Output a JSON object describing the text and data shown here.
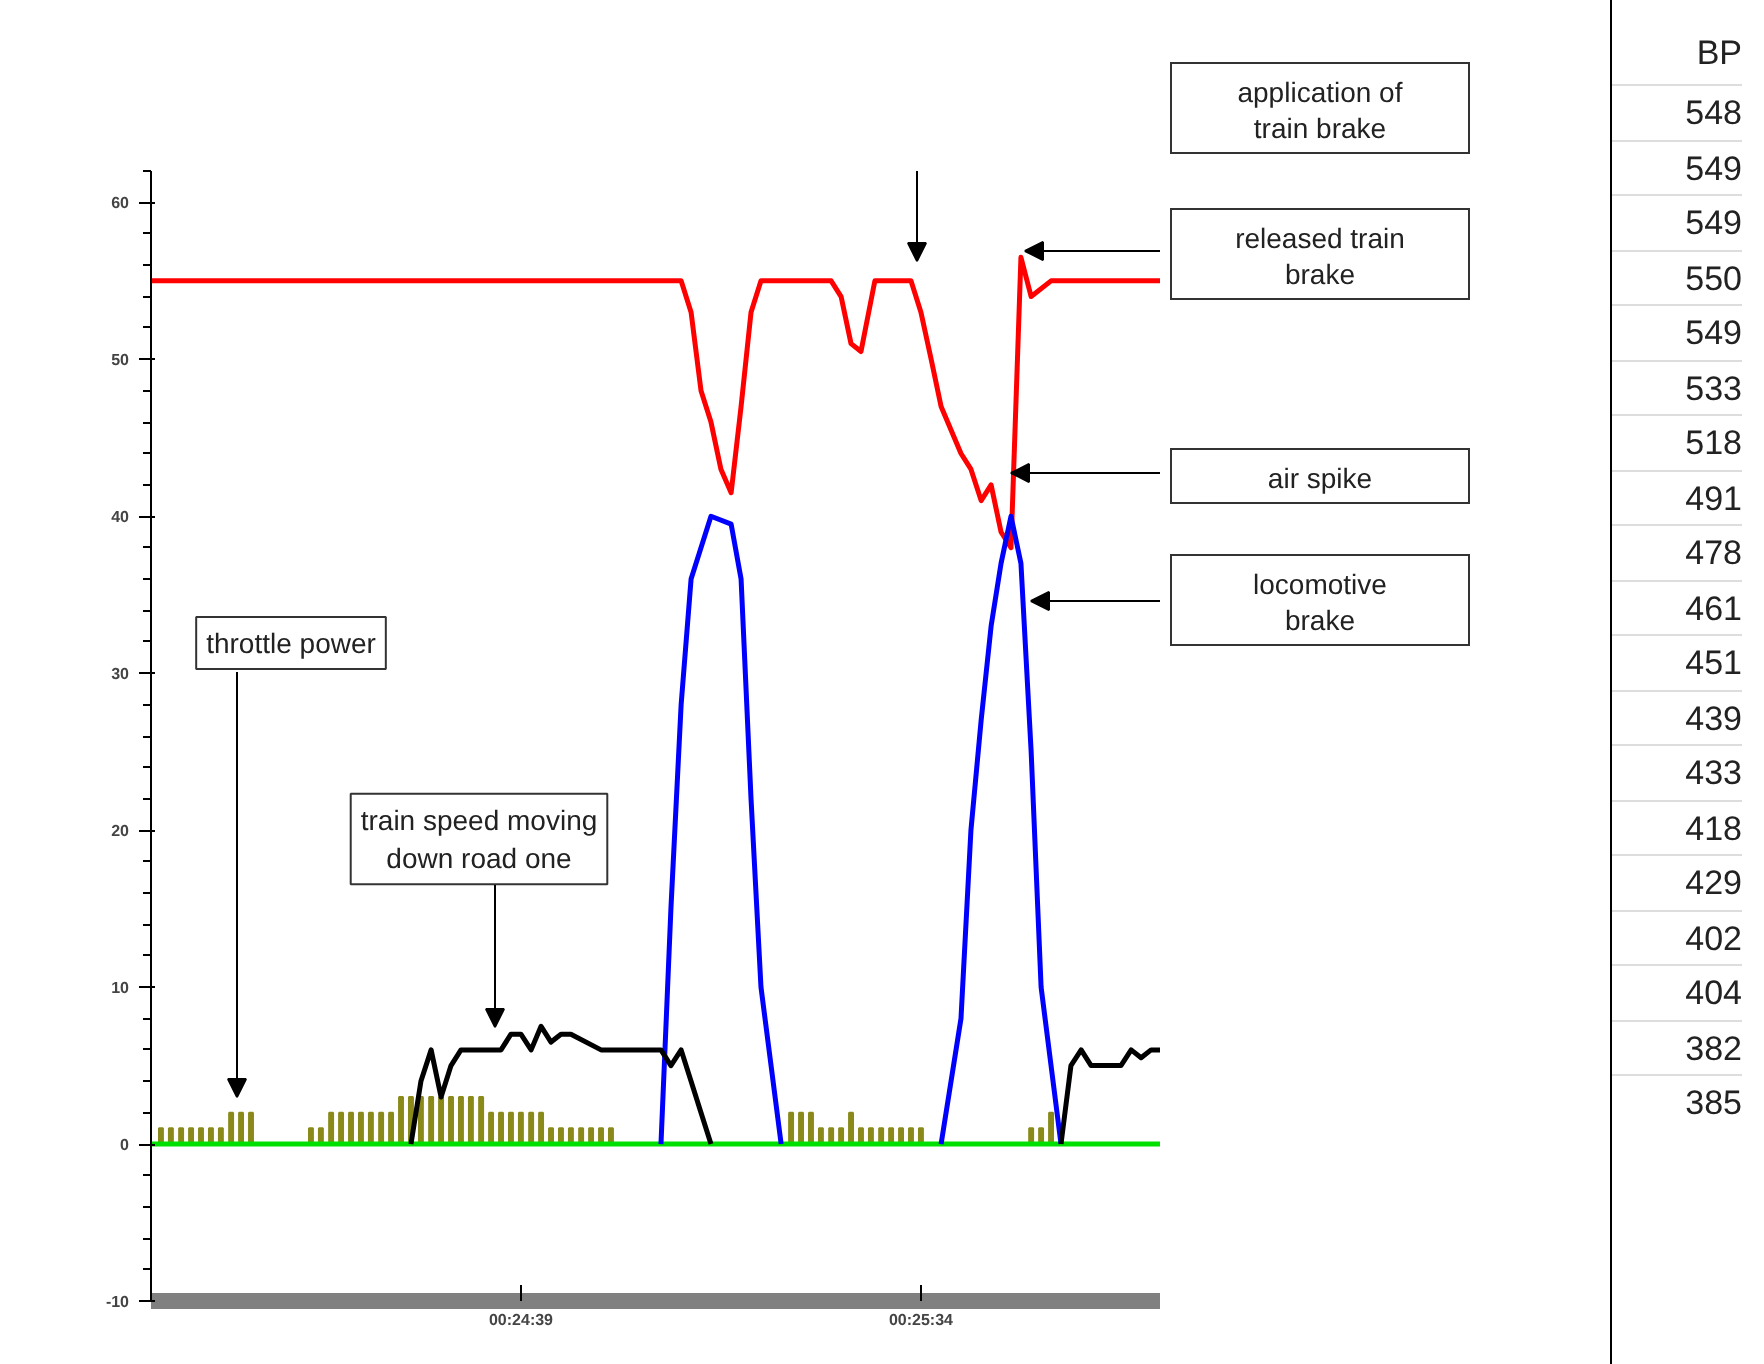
{
  "chart_data": [
    {
      "type": "line",
      "xlim": [
        0.3967,
        0.43528
      ],
      "ylim": [
        -10,
        62
      ],
      "xticks": [
        {
          "value": 0.410833,
          "label": "00:24:39"
        },
        {
          "value": 0.426111,
          "label": "00:25:34"
        }
      ],
      "yticks": [
        -10,
        0,
        10,
        20,
        30,
        40,
        50,
        60
      ],
      "grid": false,
      "series": [
        {
          "type": "bar",
          "color": "#8a8a1a",
          "x": [
            0.39708,
            0.39746,
            0.39785,
            0.39823,
            0.39861,
            0.39899,
            0.39937,
            0.39976,
            0.40014,
            0.40052,
            0.40281,
            0.40319,
            0.40358,
            0.40396,
            0.40434,
            0.40472,
            0.4051,
            0.40549,
            0.40587,
            0.40625,
            0.40663,
            0.40701,
            0.4074,
            0.40778,
            0.40816,
            0.40854,
            0.40892,
            0.40931,
            0.40969,
            0.41007,
            0.41045,
            0.41083,
            0.41122,
            0.4116,
            0.41198,
            0.41236,
            0.41274,
            0.41313,
            0.41351,
            0.41389,
            0.41427,
            0.42115,
            0.42153,
            0.42191,
            0.42229,
            0.42268,
            0.42306,
            0.42344,
            0.42382,
            0.4242,
            0.42459,
            0.42497,
            0.42535,
            0.42573,
            0.42611,
            0.43032,
            0.4307,
            0.43108
          ],
          "values": [
            1,
            1,
            1,
            1,
            1,
            1,
            1,
            2,
            2,
            2,
            1,
            1,
            2,
            2,
            2,
            2,
            2,
            2,
            2,
            3,
            3,
            3,
            3,
            3,
            3,
            3,
            3,
            3,
            2,
            2,
            2,
            2,
            2,
            2,
            1,
            1,
            1,
            1,
            1,
            1,
            1,
            2,
            2,
            2,
            1,
            1,
            1,
            2,
            1,
            1,
            1,
            1,
            1,
            1,
            1,
            1,
            1,
            2
          ]
        },
        {
          "color": "#00e000",
          "x": [
            0.3967,
            0.43528
          ],
          "values": [
            0,
            0
          ]
        },
        {
          "color": "#ff0000",
          "x": [
            0.3967,
            0.41695,
            0.41733,
            0.41771,
            0.41809,
            0.41847,
            0.41886,
            0.41924,
            0.41962,
            0.42,
            0.42268,
            0.42306,
            0.42344,
            0.42382,
            0.42435,
            0.42573,
            0.42611,
            0.4265,
            0.42688,
            0.42764,
            0.42802,
            0.42841,
            0.42879,
            0.42917,
            0.42955,
            0.42993,
            0.43032,
            0.43108,
            0.43528
          ],
          "values": [
            55,
            55,
            53,
            48,
            46,
            43,
            41.5,
            47,
            53,
            55,
            55,
            54,
            51,
            50.5,
            55,
            55,
            53,
            50,
            47,
            44,
            43,
            41,
            42,
            39,
            38,
            56.5,
            54,
            55,
            55
          ]
        },
        {
          "color": "#0000ff",
          "x": [
            0.41618,
            0.41656,
            0.41695,
            0.41733,
            0.41809,
            0.41886,
            0.41924,
            0.41962,
            0.42,
            0.42077,
            0.42382,
            0.42688,
            0.42764,
            0.42802,
            0.42841,
            0.42879,
            0.42917,
            0.42955,
            0.42993,
            0.43032,
            0.4307,
            0.43146
          ],
          "values": [
            0,
            15,
            28,
            36,
            40,
            39.5,
            36,
            22,
            10,
            0,
            null,
            0,
            8,
            20,
            27,
            33,
            37,
            40,
            37,
            25,
            10,
            0
          ]
        },
        {
          "color": "#000000",
          "x": [
            0.40663,
            0.40701,
            0.4074,
            0.40778,
            0.40816,
            0.40854,
            0.41007,
            0.41045,
            0.41083,
            0.41122,
            0.4116,
            0.41198,
            0.41236,
            0.41274,
            0.41389,
            0.41618,
            0.41656,
            0.41695,
            0.41733,
            0.41771,
            0.41809,
            0.42459,
            0.43146,
            0.43184,
            0.43223,
            0.43261,
            0.43375,
            0.43414,
            0.43452,
            0.4349,
            0.43528
          ],
          "values": [
            0,
            4,
            6,
            3,
            5,
            6,
            6,
            7,
            7,
            6,
            7.5,
            6.5,
            7,
            7,
            6,
            6,
            5,
            6,
            4,
            2,
            0,
            null,
            0,
            5,
            6,
            5,
            5,
            6,
            5.5,
            6,
            6
          ]
        }
      ],
      "annotations": [
        "throttle power",
        "train speed moving down road one",
        "application of train brake",
        "released train brake",
        "air spike",
        "locomotive brake"
      ]
    },
    {
      "type": "other",
      "title": "BP",
      "annotations": [
        "548",
        "549",
        "549",
        "550",
        "549",
        "533",
        "518",
        "491",
        "478",
        "461",
        "451",
        "439",
        "433",
        "418",
        "429",
        "402",
        "404",
        "382",
        "385"
      ]
    }
  ]
}
